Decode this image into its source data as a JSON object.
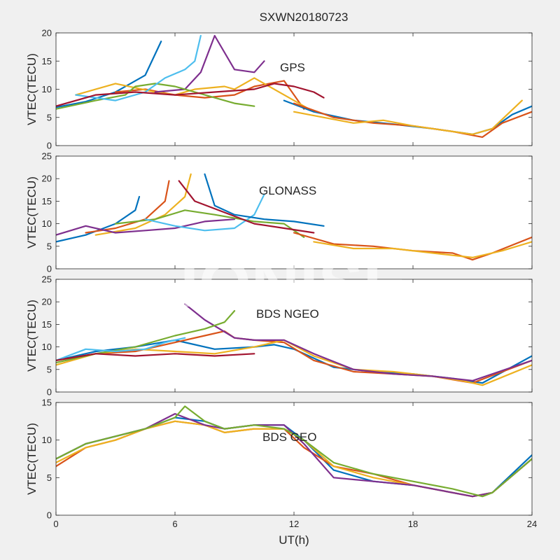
{
  "figure": {
    "title": "SXWN20180723",
    "watermark": "IONISE"
  },
  "chart_data": [
    {
      "type": "line",
      "label": "GPS",
      "ylabel": "VTEC(TECU)",
      "xlim": [
        0,
        24
      ],
      "ylim": [
        0,
        20
      ],
      "x_ticks": [
        0,
        6,
        12,
        18,
        24
      ],
      "y_ticks": [
        0,
        5,
        10,
        15,
        20
      ],
      "colors": [
        "#0072bd",
        "#d95319",
        "#edb120",
        "#7e2f8e",
        "#77ac30",
        "#4dbeee",
        "#a2142f"
      ],
      "series": [
        {
          "x": [
            0,
            1.5,
            3,
            4.5,
            5.3
          ],
          "y": [
            6.8,
            7.8,
            9.5,
            12.5,
            18.5
          ]
        },
        {
          "x": [
            3,
            4.5,
            6,
            7.5,
            9,
            10,
            11.5,
            12.5
          ],
          "y": [
            9.5,
            10,
            9,
            8.5,
            9,
            10.5,
            11.5,
            6.5
          ]
        },
        {
          "x": [
            1,
            3,
            5,
            6,
            7,
            8.5,
            9,
            10,
            12,
            13
          ],
          "y": [
            9,
            11,
            9.5,
            9,
            10,
            10.5,
            10,
            12,
            8,
            6
          ]
        },
        {
          "x": [
            5,
            6.5,
            7.3,
            8,
            9,
            10,
            10.5
          ],
          "y": [
            9.5,
            10,
            13,
            19.5,
            13.5,
            13,
            15
          ]
        },
        {
          "x": [
            0,
            2,
            3.5,
            4,
            5,
            6,
            7,
            8,
            9,
            10
          ],
          "y": [
            6.5,
            8,
            9,
            10.5,
            11,
            10.5,
            9.5,
            8.5,
            7.5,
            7
          ]
        },
        {
          "x": [
            1,
            3,
            4.5,
            5.5,
            6.5,
            7,
            7.3
          ],
          "y": [
            9,
            8,
            9.5,
            12,
            13.5,
            15,
            19.5
          ]
        },
        {
          "x": [
            0,
            2,
            4,
            6,
            8,
            10,
            11,
            12,
            13,
            13.5
          ],
          "y": [
            7,
            9,
            9.5,
            9,
            9.5,
            10,
            11,
            10.5,
            9.5,
            8.5
          ]
        },
        {
          "x": [
            11.5,
            13,
            15,
            17,
            19,
            21,
            22,
            23,
            24
          ],
          "y": [
            8,
            6,
            4.5,
            3.8,
            3,
            2,
            3,
            5.5,
            7
          ]
        },
        {
          "x": [
            12,
            14,
            16,
            18,
            20,
            21.5,
            22.5,
            24
          ],
          "y": [
            7.5,
            5,
            4,
            3.5,
            2.5,
            1.5,
            4,
            6
          ]
        },
        {
          "x": [
            12,
            13.5,
            15,
            16.5,
            18,
            20,
            21,
            22,
            23.5
          ],
          "y": [
            6,
            5,
            4,
            4.5,
            3.5,
            2.5,
            2,
            3,
            8
          ]
        }
      ]
    },
    {
      "type": "line",
      "label": "GLONASS",
      "ylabel": "VTEC(TECU)",
      "xlim": [
        0,
        24
      ],
      "ylim": [
        0,
        25
      ],
      "x_ticks": [
        0,
        6,
        12,
        18,
        24
      ],
      "y_ticks": [
        0,
        5,
        10,
        15,
        20,
        25
      ],
      "colors": [
        "#0072bd",
        "#d95319",
        "#edb120",
        "#7e2f8e",
        "#77ac30",
        "#4dbeee",
        "#a2142f"
      ],
      "series": [
        {
          "x": [
            0,
            1.5,
            3,
            4,
            4.2
          ],
          "y": [
            6,
            7.5,
            10,
            13,
            16
          ]
        },
        {
          "x": [
            1.5,
            3,
            4.5,
            5.5,
            5.7
          ],
          "y": [
            8,
            9,
            11,
            15,
            19.5
          ]
        },
        {
          "x": [
            2,
            4,
            5.5,
            6.5,
            6.8
          ],
          "y": [
            7.5,
            9,
            12,
            16,
            21
          ]
        },
        {
          "x": [
            0,
            1.5,
            3,
            4.5,
            6,
            7.5,
            9
          ],
          "y": [
            7.5,
            9.5,
            8,
            8.5,
            9,
            10.5,
            11
          ]
        },
        {
          "x": [
            3,
            5,
            6.5,
            8,
            10,
            11.5,
            12.5
          ],
          "y": [
            10,
            11,
            13,
            12,
            10.5,
            10,
            7
          ]
        },
        {
          "x": [
            4.5,
            6,
            7.5,
            9,
            10,
            10.5
          ],
          "y": [
            11,
            9.5,
            8.5,
            9,
            12,
            16.5
          ]
        },
        {
          "x": [
            6.2,
            7,
            8.5,
            10,
            11.5,
            13
          ],
          "y": [
            19.5,
            15,
            12.5,
            10,
            9,
            8
          ]
        },
        {
          "x": [
            7.5,
            8,
            9,
            10.5,
            12,
            13.5
          ],
          "y": [
            21,
            14,
            12,
            11,
            10.5,
            9.5
          ]
        },
        {
          "x": [
            12,
            14,
            16,
            18,
            20,
            21,
            22,
            24
          ],
          "y": [
            8,
            5.5,
            5,
            4,
            3.5,
            2,
            3.5,
            7
          ]
        },
        {
          "x": [
            13,
            15,
            17,
            19,
            21,
            22.5,
            24
          ],
          "y": [
            6,
            4.5,
            4.5,
            3.5,
            2.5,
            4,
            6
          ]
        }
      ]
    },
    {
      "type": "line",
      "label": "BDS NGEO",
      "ylabel": "VTEC(TECU)",
      "xlim": [
        0,
        24
      ],
      "ylim": [
        0,
        25
      ],
      "x_ticks": [
        0,
        6,
        12,
        18,
        24
      ],
      "y_ticks": [
        0,
        5,
        10,
        15,
        20,
        25
      ],
      "colors": [
        "#0072bd",
        "#d95319",
        "#edb120",
        "#7e2f8e",
        "#77ac30",
        "#4dbeee",
        "#a2142f"
      ],
      "series": [
        {
          "x": [
            0,
            2,
            4,
            6,
            8,
            10,
            11,
            12,
            14,
            16,
            18,
            20,
            21.5,
            24
          ],
          "y": [
            7,
            9,
            10,
            11.5,
            9.5,
            10,
            10.5,
            9.5,
            5.5,
            4.5,
            4,
            3,
            2,
            8
          ]
        },
        {
          "x": [
            0,
            2,
            4,
            6,
            7.5,
            8.5,
            9,
            10,
            11.5,
            13,
            15,
            17,
            19,
            21,
            24
          ],
          "y": [
            7,
            8.5,
            9,
            11,
            12.5,
            13.5,
            12,
            11.5,
            11,
            7,
            4.5,
            4,
            3.5,
            2,
            7
          ]
        },
        {
          "x": [
            0,
            2,
            4,
            6,
            8,
            10,
            11.5,
            13,
            15,
            17,
            19,
            20.5,
            21.5,
            24
          ],
          "y": [
            6,
            8.5,
            9.5,
            9,
            8.5,
            10,
            11.5,
            8,
            5,
            4.5,
            3.5,
            2.5,
            1.5,
            6
          ]
        },
        {
          "x": [
            6.5,
            7.5,
            9,
            10,
            11.5,
            13,
            15,
            17,
            19,
            21,
            24
          ],
          "y": [
            19.5,
            16,
            12,
            11.5,
            11.5,
            8.5,
            5,
            4,
            3.5,
            2.5,
            7
          ]
        },
        {
          "x": [
            0,
            2,
            4,
            6,
            7.5,
            8.5,
            9
          ],
          "y": [
            6.5,
            8.5,
            10,
            12.5,
            14,
            15.5,
            18
          ]
        },
        {
          "x": [
            0,
            1.5,
            3,
            4.5,
            5.5,
            6.5
          ],
          "y": [
            7,
            9.5,
            9,
            9.5,
            11,
            12
          ]
        },
        {
          "x": [
            0,
            2,
            4,
            6,
            8,
            10
          ],
          "y": [
            7,
            8.5,
            8,
            8.5,
            8,
            8.5
          ]
        }
      ]
    },
    {
      "type": "line",
      "label": "BDS GEO",
      "ylabel": "VTEC(TECU)",
      "xlim": [
        0,
        24
      ],
      "ylim": [
        0,
        15
      ],
      "x_ticks": [
        0,
        6,
        12,
        18,
        24
      ],
      "y_ticks": [
        0,
        5,
        10,
        15
      ],
      "colors": [
        "#0072bd",
        "#d95319",
        "#edb120",
        "#7e2f8e",
        "#77ac30",
        "#4dbeee",
        "#a2142f"
      ],
      "series": [
        {
          "x": [
            0,
            1.5,
            3,
            4.5,
            6,
            7.5,
            8.5,
            10,
            11.5,
            12.5,
            14,
            16,
            18,
            20,
            21,
            22,
            24
          ],
          "y": [
            7.5,
            9.5,
            10.5,
            11.5,
            13,
            12.5,
            11.5,
            12,
            12,
            10,
            6,
            4.5,
            4,
            3,
            2.5,
            3,
            8
          ]
        },
        {
          "x": [
            0,
            1.5,
            3,
            4.5,
            6,
            7.5,
            8.5,
            10,
            11.5,
            12.5,
            14,
            16,
            18,
            20,
            21,
            22,
            24
          ],
          "y": [
            6.5,
            9,
            10,
            11.5,
            12.5,
            12,
            11,
            11.5,
            11.5,
            9,
            6.5,
            5.5,
            4,
            3,
            2.5,
            3,
            7.5
          ]
        },
        {
          "x": [
            0,
            1.5,
            3,
            4.5,
            6,
            7.5,
            8.5,
            10,
            11.5,
            12.5,
            14,
            16,
            18,
            20,
            21,
            22,
            24
          ],
          "y": [
            7,
            9,
            10,
            11.5,
            12.5,
            12,
            11,
            11.5,
            11.5,
            10,
            6.5,
            5,
            4,
            3,
            2.5,
            3,
            7.5
          ]
        },
        {
          "x": [
            0,
            1.5,
            3,
            4.5,
            6,
            7.5,
            8.5,
            10,
            11.5,
            12.5,
            14,
            16,
            18,
            20,
            21,
            22,
            24
          ],
          "y": [
            7.5,
            9.5,
            10.5,
            11.5,
            13.5,
            12,
            11.5,
            12,
            12,
            9.5,
            5,
            4.5,
            4,
            3,
            2.5,
            3,
            7.5
          ]
        },
        {
          "x": [
            0,
            1.5,
            3,
            4.5,
            6,
            6.5,
            7.5,
            8.5,
            10,
            11.5,
            12.5,
            14,
            16,
            18,
            20,
            21.5,
            22,
            24
          ],
          "y": [
            7.5,
            9.5,
            10.5,
            11.5,
            13,
            14.5,
            12.5,
            11.5,
            12,
            11.5,
            10,
            7,
            5.5,
            4.5,
            3.5,
            2.5,
            3,
            7.5
          ]
        }
      ]
    }
  ],
  "x_axis": {
    "label": "UT(h)"
  }
}
